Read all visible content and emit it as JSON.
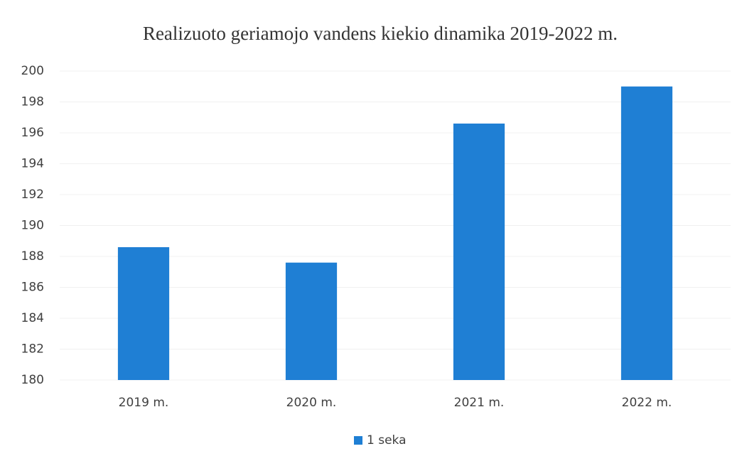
{
  "chart_data": {
    "type": "bar",
    "title": "Realizuoto geriamojo vandens kiekio dinamika 2019-2022 m.",
    "categories": [
      "2019 m.",
      "2020 m.",
      "2021 m.",
      "2022 m."
    ],
    "series": [
      {
        "name": "1 seka",
        "color": "#1f7fd4",
        "values": [
          188.6,
          187.6,
          196.6,
          199.0
        ]
      }
    ],
    "ylim": [
      180,
      200
    ],
    "yticks": [
      180,
      182,
      184,
      186,
      188,
      190,
      192,
      194,
      196,
      198,
      200
    ],
    "grid": true,
    "legend": "bottom"
  }
}
